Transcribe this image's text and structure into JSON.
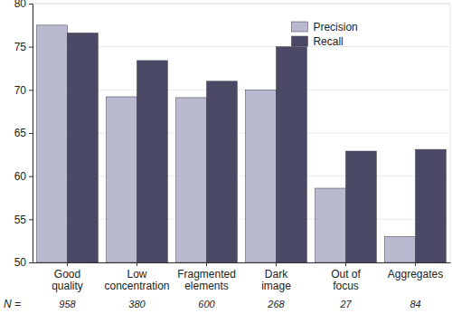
{
  "chart_data": {
    "type": "bar",
    "categories": [
      "Good\nquality",
      "Low\nconcentration",
      "Fragmented\nelements",
      "Dark\nimage",
      "Out of\nfocus",
      "Aggregates"
    ],
    "series": [
      {
        "name": "Precision",
        "color": "#b9b9cf",
        "values": [
          77.5,
          69.2,
          69.1,
          70.0,
          58.6,
          53.0
        ]
      },
      {
        "name": "Recall",
        "color": "#4a4a66",
        "values": [
          76.6,
          73.4,
          71.0,
          75.0,
          62.9,
          63.1
        ]
      }
    ],
    "ylim": [
      50,
      80
    ],
    "yticks": [
      50,
      55,
      60,
      65,
      70,
      75,
      80
    ],
    "grid": true,
    "legend": "top-right",
    "sample_sizes": {
      "label": "N =",
      "values": [
        958,
        380,
        600,
        268,
        27,
        84
      ]
    }
  }
}
